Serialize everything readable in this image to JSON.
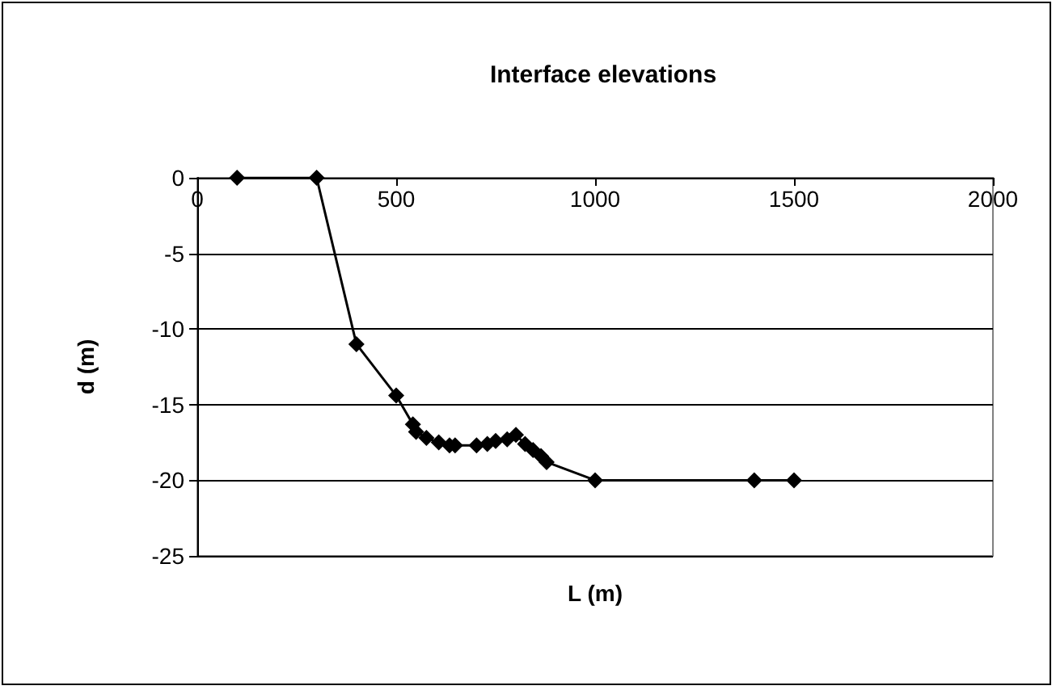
{
  "chart_data": {
    "type": "line",
    "title": "Interface elevations",
    "xlabel": "L (m)",
    "ylabel": "d (m)",
    "series": [
      {
        "color": "#000000",
        "x": [
          100,
          300,
          400,
          500,
          542,
          550,
          576,
          607,
          634,
          648,
          702,
          729,
          750,
          779,
          801,
          824,
          844,
          864,
          878,
          1000,
          1400,
          1500
        ],
        "values": [
          0,
          0,
          -11,
          -14.4,
          -16.3,
          -16.8,
          -17.2,
          -17.5,
          -17.7,
          -17.7,
          -17.7,
          -17.6,
          -17.4,
          -17.3,
          -17,
          -17.6,
          -18,
          -18.4,
          -18.8,
          -20,
          -20,
          -20
        ]
      }
    ],
    "xlim": [
      0,
      2000
    ],
    "xticks": [
      0,
      500,
      1000,
      1500,
      2000
    ],
    "ylim": [
      -25,
      0
    ],
    "yticks": [
      -25,
      -20,
      -15,
      -10,
      -5,
      0
    ],
    "grid": "y",
    "marker": "diamond",
    "line_style": "solid"
  }
}
